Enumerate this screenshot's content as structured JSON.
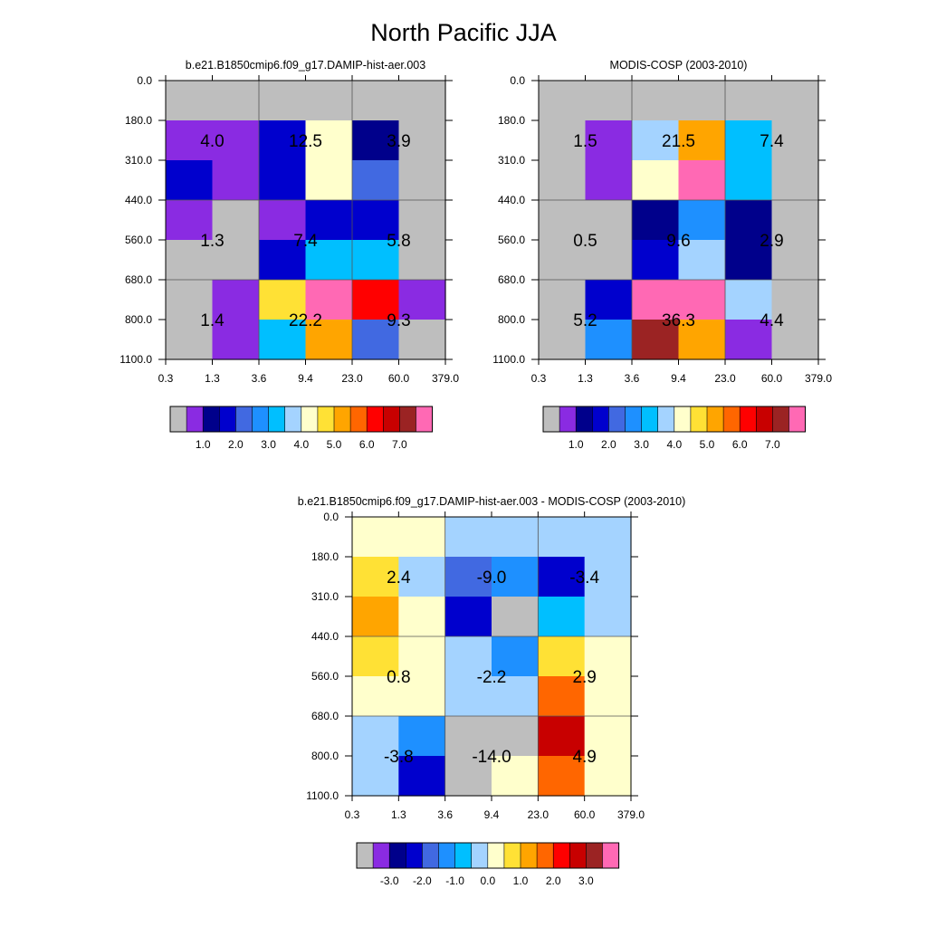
{
  "title": "North Pacific JJA",
  "palette": [
    "#BEBEBE",
    "#8A2BE2",
    "#00008B",
    "#0000CD",
    "#4169E1",
    "#1E90FF",
    "#00BFFF",
    "#A4D3FF",
    "#FFFFCC",
    "#FFE135",
    "#FFA500",
    "#FF6600",
    "#FF0000",
    "#C80000",
    "#9B2323",
    "#FF69B4"
  ],
  "chart_data": [
    {
      "type": "heatmap",
      "title": "b.e21.B1850cmip6.f09_g17.DAMIP-hist-aer.003",
      "x_ticks": [
        "0.3",
        "1.3",
        "3.6",
        "9.4",
        "23.0",
        "60.0",
        "379.0"
      ],
      "y_ticks": [
        "0.0",
        "180.0",
        "310.0",
        "440.0",
        "560.0",
        "680.0",
        "800.0",
        "1100.0"
      ],
      "cells": [
        [
          0,
          0,
          0,
          0,
          0,
          0
        ],
        [
          1,
          1,
          3,
          8,
          2,
          0
        ],
        [
          3,
          1,
          3,
          8,
          4,
          0
        ],
        [
          1,
          0,
          1,
          3,
          3,
          0
        ],
        [
          0,
          0,
          3,
          6,
          6,
          0
        ],
        [
          0,
          1,
          9,
          15,
          12,
          1
        ],
        [
          0,
          1,
          6,
          10,
          4,
          0
        ]
      ],
      "cell_labels": [
        "4.0",
        "12.5",
        "3.9",
        "1.3",
        "7.4",
        "5.8",
        "1.4",
        "22.2",
        "9.3"
      ],
      "colorbar_labels": [
        "1.0",
        "2.0",
        "3.0",
        "4.0",
        "5.0",
        "6.0",
        "7.0"
      ]
    },
    {
      "type": "heatmap",
      "title": "MODIS-COSP (2003-2010)",
      "x_ticks": [
        "0.3",
        "1.3",
        "3.6",
        "9.4",
        "23.0",
        "60.0",
        "379.0"
      ],
      "y_ticks": [
        "0.0",
        "180.0",
        "310.0",
        "440.0",
        "560.0",
        "680.0",
        "800.0",
        "1100.0"
      ],
      "cells": [
        [
          0,
          0,
          0,
          0,
          0,
          0
        ],
        [
          0,
          1,
          7,
          10,
          6,
          0
        ],
        [
          0,
          1,
          8,
          15,
          6,
          0
        ],
        [
          0,
          0,
          2,
          5,
          2,
          0
        ],
        [
          0,
          0,
          3,
          7,
          2,
          0
        ],
        [
          0,
          3,
          15,
          15,
          7,
          0
        ],
        [
          0,
          5,
          14,
          10,
          1,
          0
        ]
      ],
      "cell_labels": [
        "1.5",
        "21.5",
        "7.4",
        "0.5",
        "9.6",
        "2.9",
        "5.2",
        "36.3",
        "4.4"
      ],
      "colorbar_labels": [
        "1.0",
        "2.0",
        "3.0",
        "4.0",
        "5.0",
        "6.0",
        "7.0"
      ]
    },
    {
      "type": "heatmap",
      "title": "b.e21.B1850cmip6.f09_g17.DAMIP-hist-aer.003 - MODIS-COSP (2003-2010)",
      "x_ticks": [
        "0.3",
        "1.3",
        "3.6",
        "9.4",
        "23.0",
        "60.0",
        "379.0"
      ],
      "y_ticks": [
        "0.0",
        "180.0",
        "310.0",
        "440.0",
        "560.0",
        "680.0",
        "800.0",
        "1100.0"
      ],
      "cells": [
        [
          8,
          8,
          7,
          7,
          7,
          7
        ],
        [
          9,
          7,
          4,
          5,
          3,
          7
        ],
        [
          10,
          8,
          3,
          0,
          6,
          7
        ],
        [
          9,
          8,
          7,
          5,
          9,
          8
        ],
        [
          8,
          8,
          7,
          7,
          11,
          8
        ],
        [
          7,
          5,
          0,
          0,
          13,
          8
        ],
        [
          7,
          3,
          0,
          8,
          11,
          8
        ]
      ],
      "cell_labels": [
        "2.4",
        "-9.0",
        "-3.4",
        "0.8",
        "-2.2",
        "2.9",
        "-3.8",
        "-14.0",
        "4.9"
      ],
      "colorbar_labels": [
        "-3.0",
        "-2.0",
        "-1.0",
        "0.0",
        "1.0",
        "2.0",
        "3.0"
      ]
    }
  ]
}
